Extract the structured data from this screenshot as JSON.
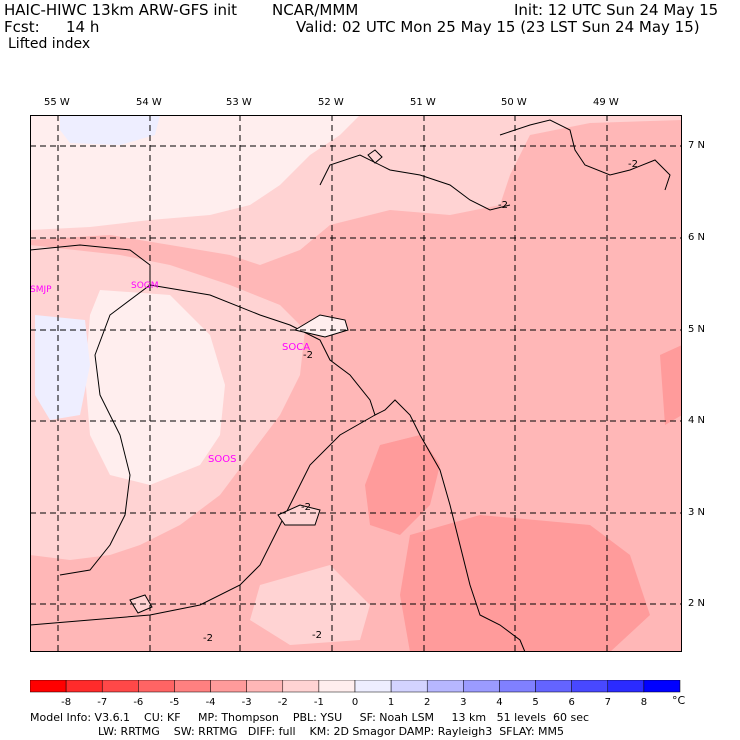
{
  "header": {
    "model": "HAIC-HIWC 13km ARW-GFS init",
    "org": "NCAR/MMM",
    "init": "Init: 12 UTC Sun 24 May 15",
    "fcst_label": "Fcst:",
    "fcst_value": "14 h",
    "valid": "Valid: 02 UTC Mon 25 May 15 (23 LST Sun 24 May 15)",
    "field": "Lifted index"
  },
  "lon_labels": [
    "55 W",
    "54 W",
    "53 W",
    "52 W",
    "51 W",
    "50 W",
    "49 W"
  ],
  "lat_labels": [
    "7 N",
    "6 N",
    "5 N",
    "4 N",
    "3 N",
    "2 N"
  ],
  "stations": [
    "SMJP",
    "SOGM",
    "SOCA",
    "SOOS"
  ],
  "contour_labels": [
    "-2",
    "-2",
    "-2",
    "-2",
    "-2",
    "-2"
  ],
  "colorbar": {
    "ticks": [
      "-8",
      "-7",
      "-6",
      "-5",
      "-4",
      "-3",
      "-2",
      "-1",
      "0",
      "1",
      "2",
      "3",
      "4",
      "5",
      "6",
      "7",
      "8"
    ],
    "unit": "°C",
    "colors": [
      "#ff0000",
      "#ff2b2b",
      "#ff4848",
      "#ff6464",
      "#ff8080",
      "#ff9b9b",
      "#ffb7b7",
      "#ffd3d3",
      "#ffeeee",
      "#eeeeff",
      "#d3d3ff",
      "#b7b7ff",
      "#9b9bff",
      "#8080ff",
      "#6464ff",
      "#4848ff",
      "#2b2bff",
      "#0000ff"
    ]
  },
  "footer": {
    "line1": "Model Info: V3.6.1    CU: KF     MP: Thompson    PBL: YSU     SF: Noah LSM     13 km   51 levels  60 sec",
    "line2": "LW: RRTMG    SW: RRTMG   DIFF: full    KM: 2D Smagor DAMP: Rayleigh3  SFLAY: MM5"
  },
  "colors": {
    "field_light": "#ffd3d3",
    "field_mid": "#ffb7b7",
    "field_strong": "#ff9b9b",
    "field_pale": "#ffeeee",
    "field_blue": "#eeeeff",
    "station": "#ff00ff"
  }
}
